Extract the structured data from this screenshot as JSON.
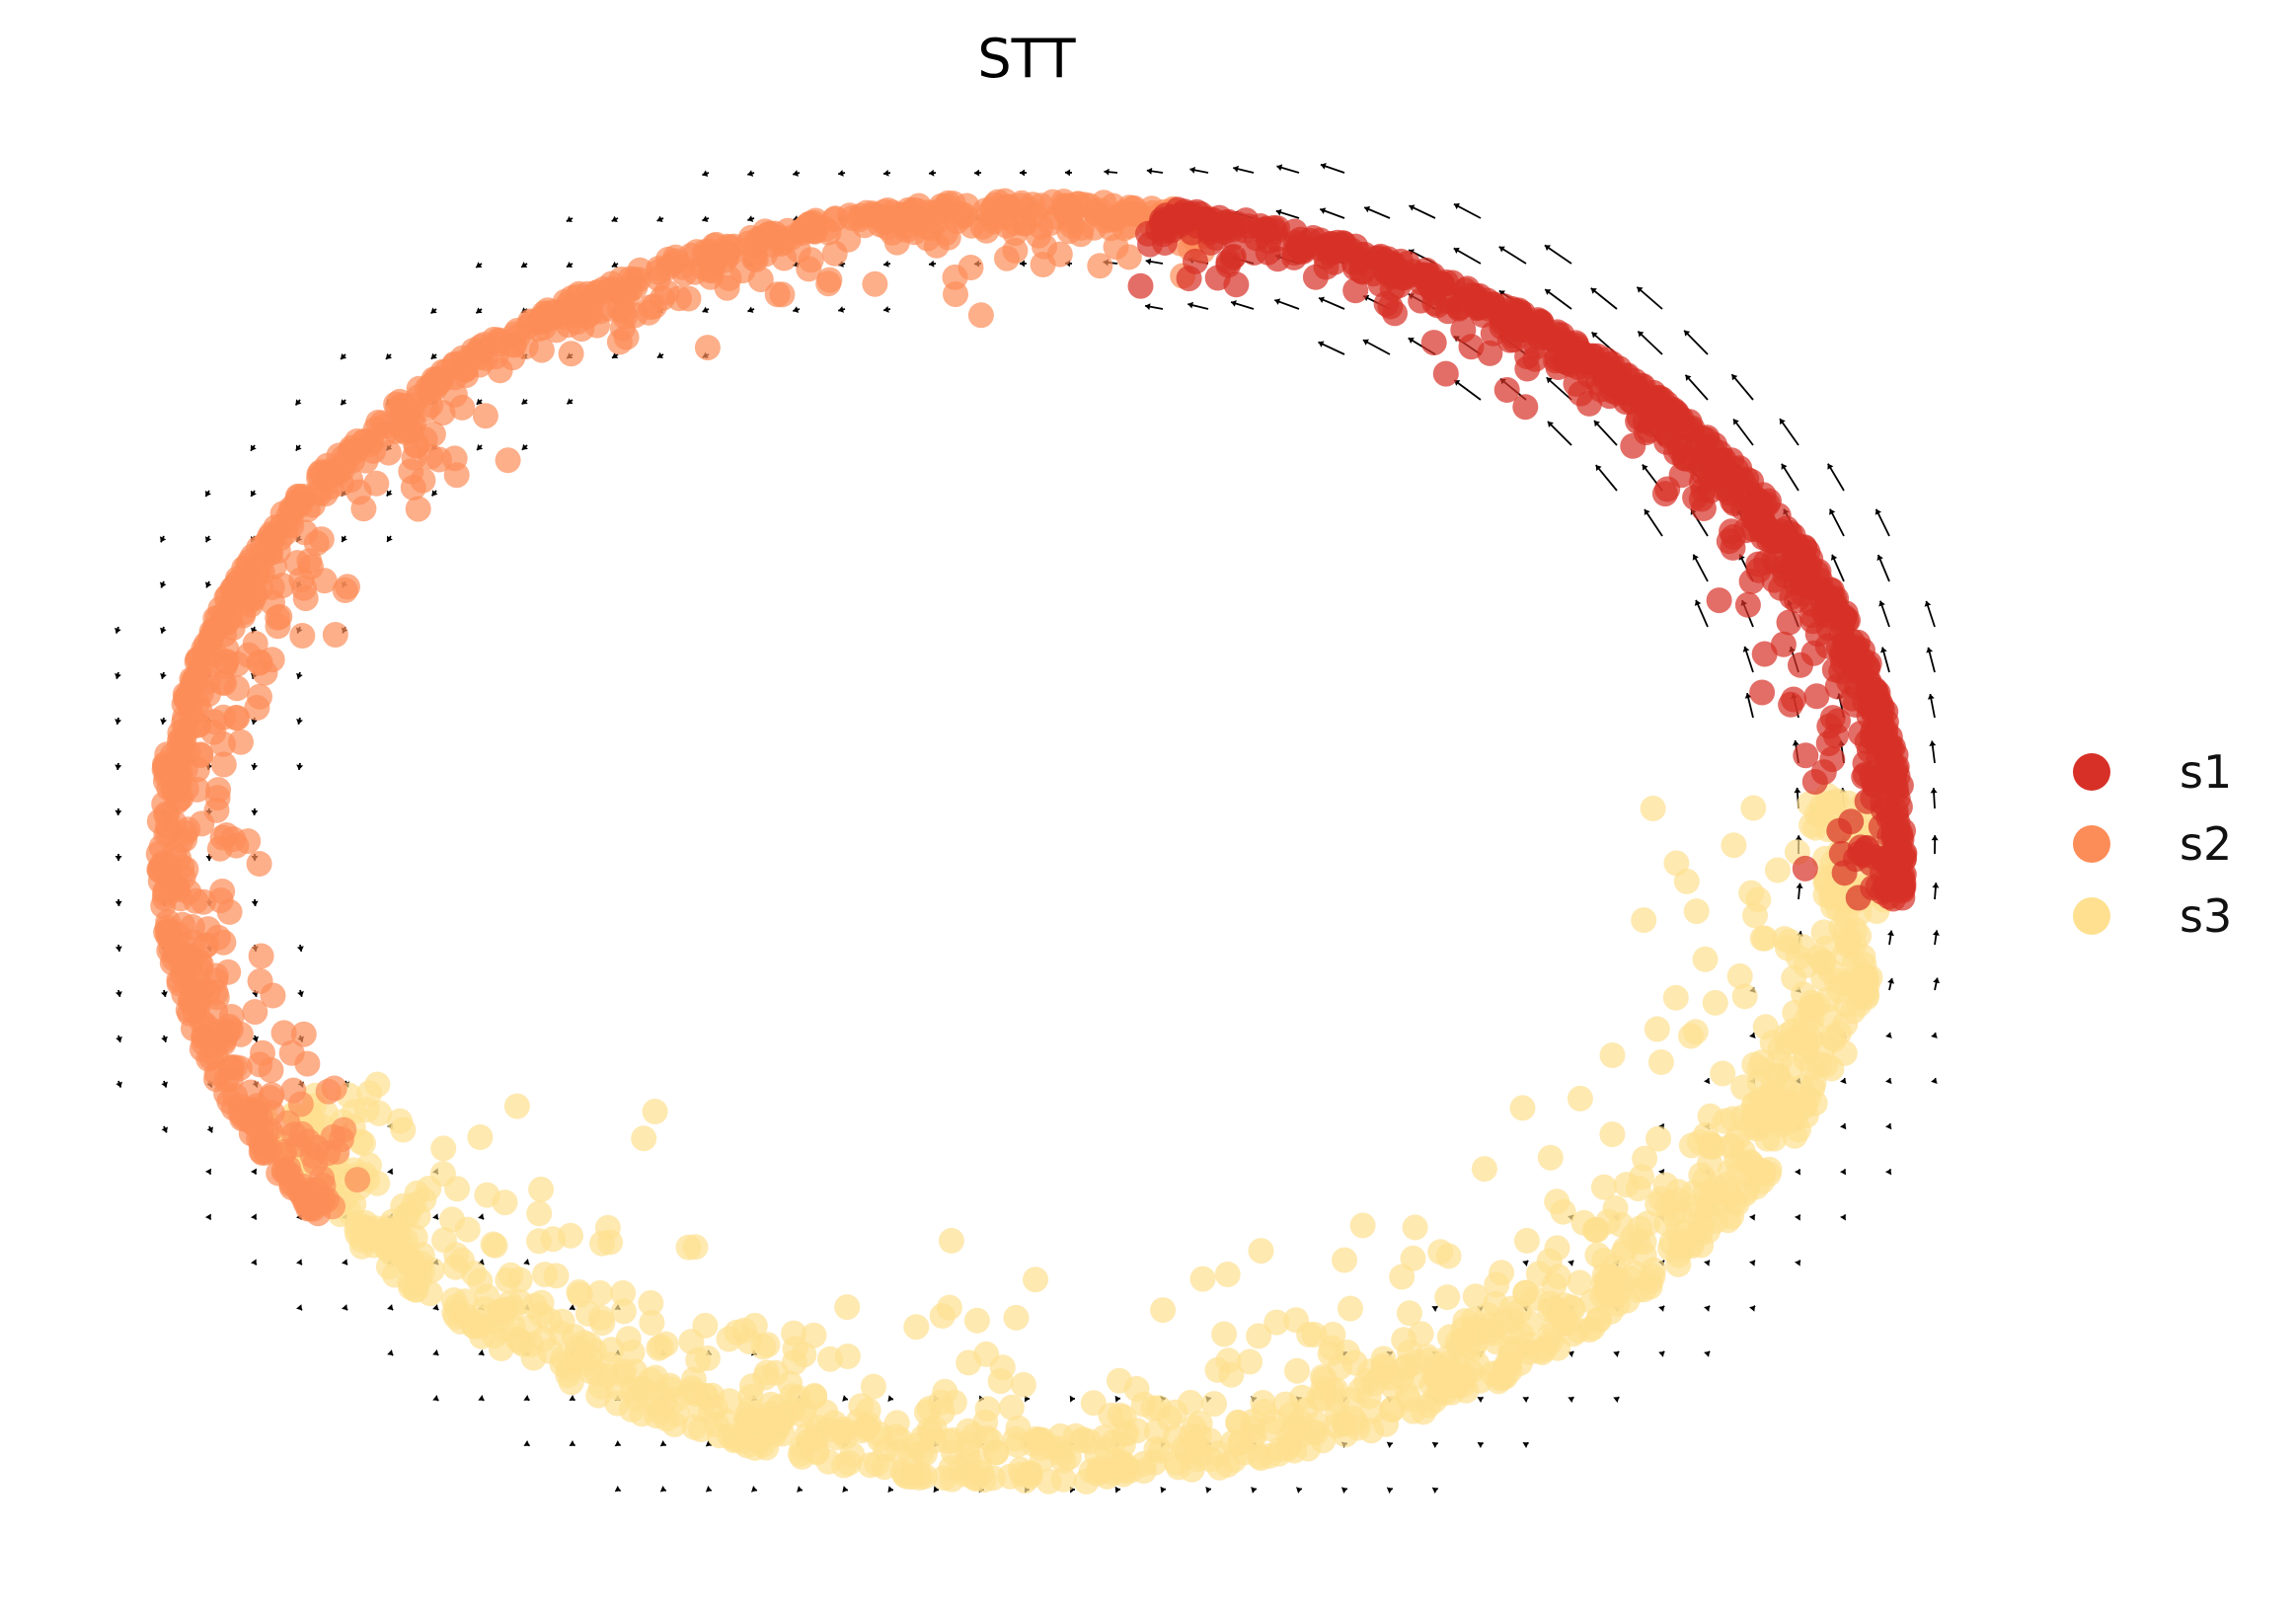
{
  "chart_data": {
    "type": "scatter",
    "title": "STT",
    "xlabel": "",
    "ylabel": "",
    "axes_visible": false,
    "grid": false,
    "legend_placement": "right",
    "series": [
      {
        "name": "s1",
        "color": "#d73027",
        "arc_deg": [
          -5,
          82
        ],
        "points_estimate": 700
      },
      {
        "name": "s2",
        "color": "#fc8d59",
        "arc_deg": [
          78,
          215
        ],
        "points_estimate": 900
      },
      {
        "name": "s3",
        "color": "#fee090",
        "arc_deg": [
          205,
          365
        ],
        "points_estimate": 1100
      }
    ],
    "overlay": {
      "type": "velocity_arrows",
      "color": "#000000"
    }
  }
}
